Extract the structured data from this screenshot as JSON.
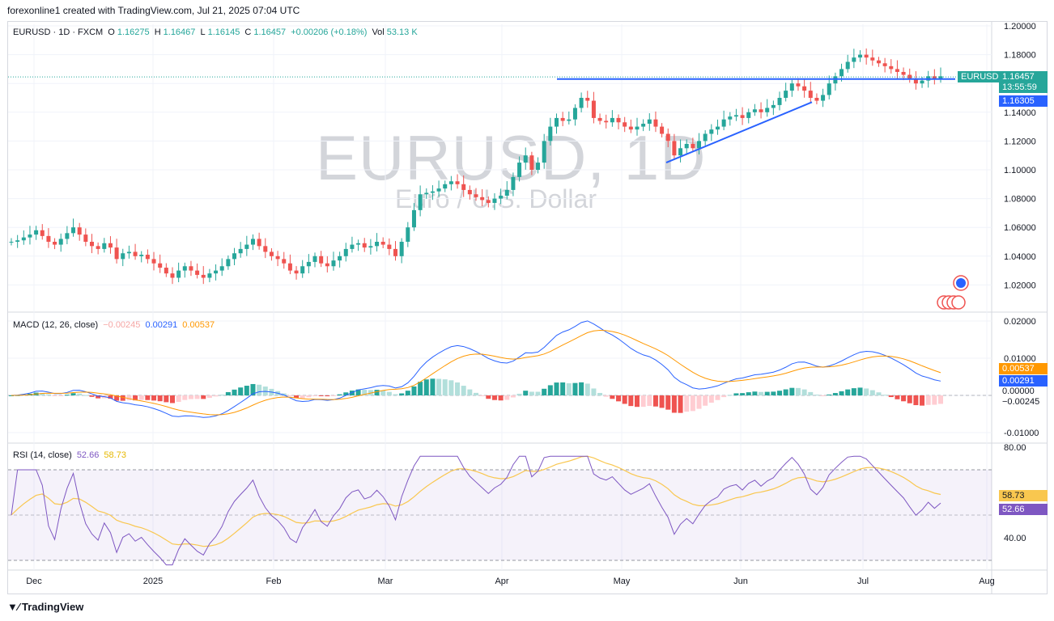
{
  "header": {
    "attribution": "forexonline1 created with TradingView.com, Jul 21, 2025 07:04 UTC"
  },
  "main_legend": {
    "symbol": "EURUSD · 1D · FXCM",
    "o_label": "O",
    "o": "1.16275",
    "h_label": "H",
    "h": "1.16467",
    "l_label": "L",
    "l": "1.16145",
    "c_label": "C",
    "c": "1.16457",
    "chg": "+0.00206 (+0.18%)",
    "vol_label": "Vol",
    "vol": "53.13 K"
  },
  "watermark": {
    "main": "EURUSD, 1D",
    "sub": "Euro / U.S. Dollar"
  },
  "macd_legend": {
    "title": "MACD (12, 26, close)",
    "hist": "−0.00245",
    "macd": "0.00291",
    "signal": "0.00537"
  },
  "rsi_legend": {
    "title": "RSI (14, close)",
    "rsi": "52.66",
    "ma": "58.73"
  },
  "price_tags": {
    "symbol_tag": "EURUSD",
    "last": "1.16457",
    "countdown": "13:55:59",
    "line_level": "1.16305",
    "macd_signal": "0.00537",
    "macd_line": "0.00291",
    "macd_zero": "0.00000",
    "macd_hist": "−0.00245",
    "rsi_ma": "58.73",
    "rsi": "52.66"
  },
  "colors": {
    "up": "#26a69a",
    "down": "#ef5350",
    "macd": "#2962ff",
    "signal": "#ff9800",
    "rsi": "#7e57c2",
    "rsi_ma": "#f9c74f",
    "trend": "#2962ff"
  },
  "footer": {
    "brand": "TradingView"
  },
  "chart_data": [
    {
      "type": "candlestick",
      "title": "EURUSD · 1D · FXCM",
      "ylim": [
        1.0,
        1.2
      ],
      "y_ticks": [
        "1.20000",
        "1.18000",
        "1.16000",
        "1.14000",
        "1.12000",
        "1.10000",
        "1.08000",
        "1.06000",
        "1.04000",
        "1.02000"
      ],
      "x_ticks": [
        "Dec",
        "2025",
        "Feb",
        "Mar",
        "Apr",
        "May",
        "Jun",
        "Jul",
        "Aug"
      ],
      "closes_approx": [
        1.05,
        1.051,
        1.053,
        1.055,
        1.058,
        1.054,
        1.05,
        1.048,
        1.052,
        1.056,
        1.06,
        1.055,
        1.05,
        1.047,
        1.045,
        1.049,
        1.046,
        1.038,
        1.042,
        1.043,
        1.04,
        1.041,
        1.038,
        1.035,
        1.032,
        1.028,
        1.025,
        1.03,
        1.033,
        1.03,
        1.027,
        1.025,
        1.028,
        1.03,
        1.033,
        1.038,
        1.042,
        1.045,
        1.048,
        1.052,
        1.047,
        1.043,
        1.04,
        1.038,
        1.035,
        1.03,
        1.028,
        1.033,
        1.036,
        1.04,
        1.035,
        1.033,
        1.037,
        1.04,
        1.045,
        1.048,
        1.049,
        1.046,
        1.047,
        1.05,
        1.048,
        1.045,
        1.04,
        1.05,
        1.06,
        1.072,
        1.083,
        1.084,
        1.085,
        1.087,
        1.09,
        1.092,
        1.09,
        1.086,
        1.083,
        1.081,
        1.079,
        1.077,
        1.08,
        1.082,
        1.086,
        1.095,
        1.105,
        1.11,
        1.1,
        1.105,
        1.12,
        1.13,
        1.136,
        1.134,
        1.135,
        1.143,
        1.15,
        1.148,
        1.136,
        1.134,
        1.133,
        1.136,
        1.133,
        1.13,
        1.128,
        1.13,
        1.132,
        1.135,
        1.13,
        1.125,
        1.12,
        1.11,
        1.115,
        1.118,
        1.115,
        1.12,
        1.125,
        1.128,
        1.13,
        1.135,
        1.137,
        1.138,
        1.136,
        1.14,
        1.142,
        1.14,
        1.143,
        1.145,
        1.15,
        1.155,
        1.16,
        1.158,
        1.155,
        1.15,
        1.148,
        1.152,
        1.16,
        1.165,
        1.17,
        1.175,
        1.178,
        1.18,
        1.178,
        1.176,
        1.174,
        1.172,
        1.17,
        1.168,
        1.166,
        1.163,
        1.16,
        1.162,
        1.165,
        1.163,
        1.165
      ]
    },
    {
      "type": "line",
      "title": "MACD (12, 26, close)",
      "ylim": [
        -0.012,
        0.02
      ],
      "y_ticks": [
        "0.02000",
        "0.01000",
        "0.00000",
        "-0.01000"
      ],
      "series": [
        {
          "name": "MACD",
          "last": 0.00291
        },
        {
          "name": "Signal",
          "last": 0.00537
        },
        {
          "name": "Histogram",
          "last": -0.00245
        }
      ]
    },
    {
      "type": "line",
      "title": "RSI (14, close)",
      "ylim": [
        25,
        80
      ],
      "bands": [
        30,
        70
      ],
      "y_ticks": [
        "80.00",
        "40.00"
      ],
      "series": [
        {
          "name": "RSI",
          "last": 52.66
        },
        {
          "name": "RSI MA",
          "last": 58.73
        }
      ]
    }
  ]
}
